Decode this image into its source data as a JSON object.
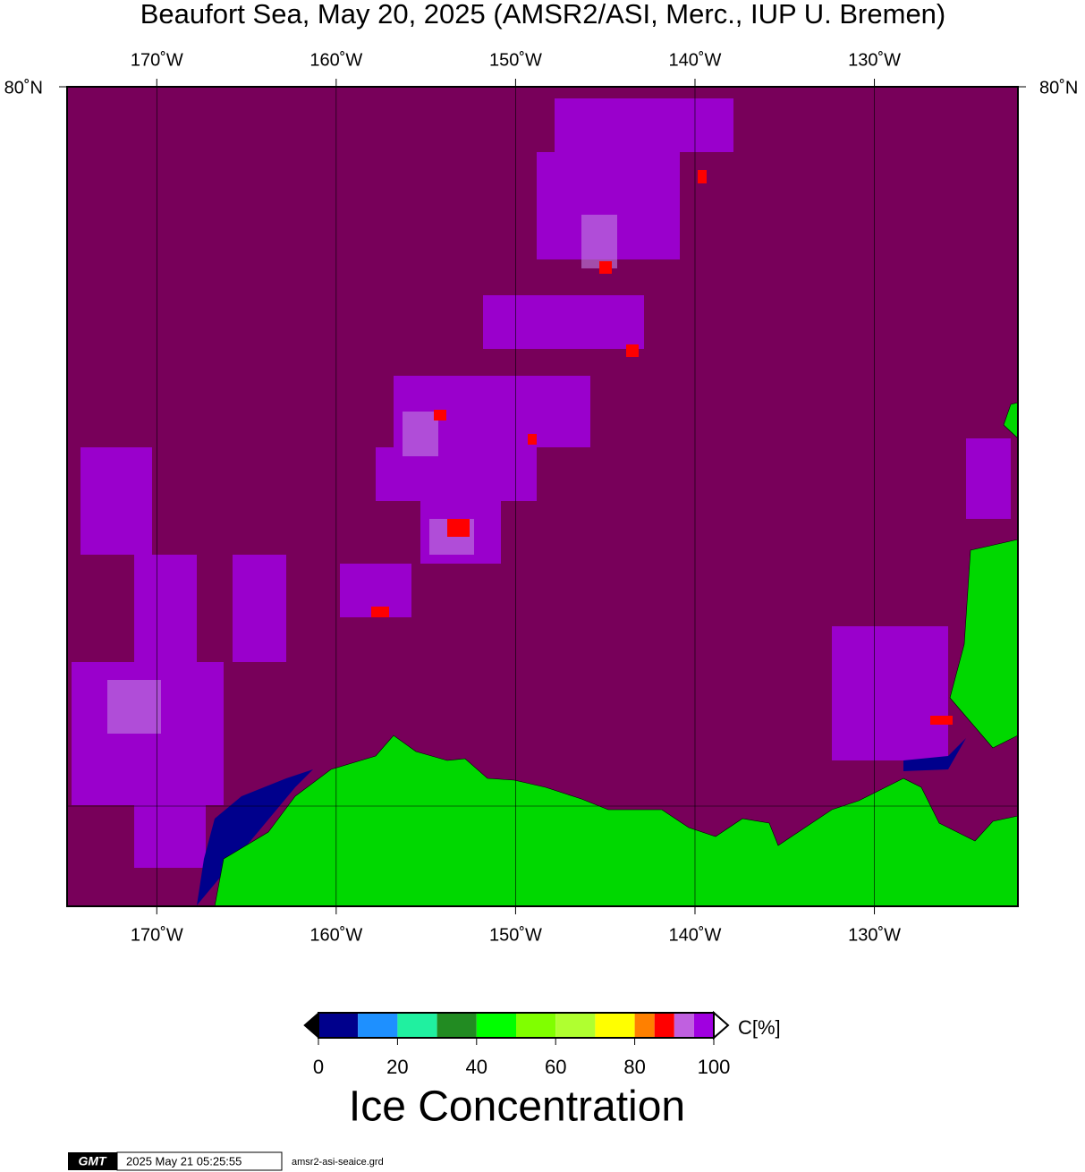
{
  "chart_data": {
    "type": "map",
    "title": "Beaufort Sea, May 20, 2025 (AMSR2/ASI, Merc., IUP U. Bremen)",
    "xlim": [
      -175,
      -122
    ],
    "xticks": [
      {
        "value": -170,
        "label": "170˚W"
      },
      {
        "value": -160,
        "label": "160˚W"
      },
      {
        "value": -150,
        "label": "150˚W"
      },
      {
        "value": -140,
        "label": "140˚W"
      },
      {
        "value": -130,
        "label": "130˚W"
      }
    ],
    "lat_label": "80˚N",
    "ocean_color": "#78005a",
    "land_color": "#00d800",
    "colorbar": {
      "bins": [
        0,
        10,
        20,
        30,
        40,
        50,
        60,
        70,
        80,
        85,
        90,
        95,
        100
      ],
      "colors": [
        "#00008c",
        "#1e90ff",
        "#20f0a0",
        "#228b22",
        "#00ff00",
        "#80ff00",
        "#b0ff30",
        "#ffff00",
        "#ff8000",
        "#ff0000",
        "#c060e0",
        "#a000e0"
      ],
      "lim": [
        0,
        100
      ],
      "ticks": [
        0,
        20,
        40,
        60,
        80,
        100
      ],
      "unit": "C[%]",
      "title": "Ice Concentration"
    },
    "footer": {
      "logo": "GMT",
      "timestamp": "2025 May 21 05:25:55",
      "file": "amsr2-asi-seaice.grd"
    }
  }
}
